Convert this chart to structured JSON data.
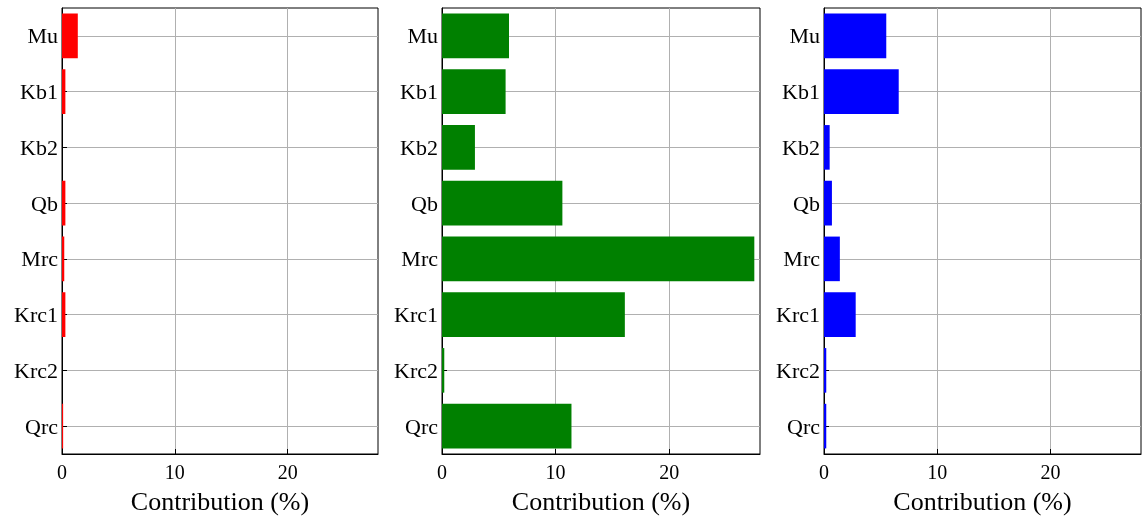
{
  "chart_data": [
    {
      "type": "bar",
      "orientation": "horizontal",
      "categories": [
        "Mu",
        "Kb1",
        "Kb2",
        "Qb",
        "Mrc",
        "Krc1",
        "Krc2",
        "Qrc"
      ],
      "values": [
        1.4,
        0.3,
        0,
        0.3,
        0.2,
        0.3,
        0,
        0.1
      ],
      "color": "#ff0000",
      "xlim": [
        0,
        28
      ],
      "xticks": [
        0,
        10,
        20
      ],
      "xlabel": "Contribution (%)",
      "grid": true
    },
    {
      "type": "bar",
      "orientation": "horizontal",
      "categories": [
        "Mu",
        "Kb1",
        "Kb2",
        "Qb",
        "Mrc",
        "Krc1",
        "Krc2",
        "Qrc"
      ],
      "values": [
        5.9,
        5.6,
        2.9,
        10.6,
        27.5,
        16.1,
        0.2,
        11.4
      ],
      "color": "#008000",
      "xlim": [
        0,
        28
      ],
      "xticks": [
        0,
        10,
        20
      ],
      "xlabel": "Contribution (%)",
      "grid": true
    },
    {
      "type": "bar",
      "orientation": "horizontal",
      "categories": [
        "Mu",
        "Kb1",
        "Kb2",
        "Qb",
        "Mrc",
        "Krc1",
        "Krc2",
        "Qrc"
      ],
      "values": [
        5.5,
        6.6,
        0.5,
        0.7,
        1.4,
        2.8,
        0.2,
        0.2
      ],
      "color": "#0000ff",
      "xlim": [
        0,
        28
      ],
      "xticks": [
        0,
        10,
        20
      ],
      "xlabel": "Contribution (%)",
      "grid": true
    }
  ]
}
